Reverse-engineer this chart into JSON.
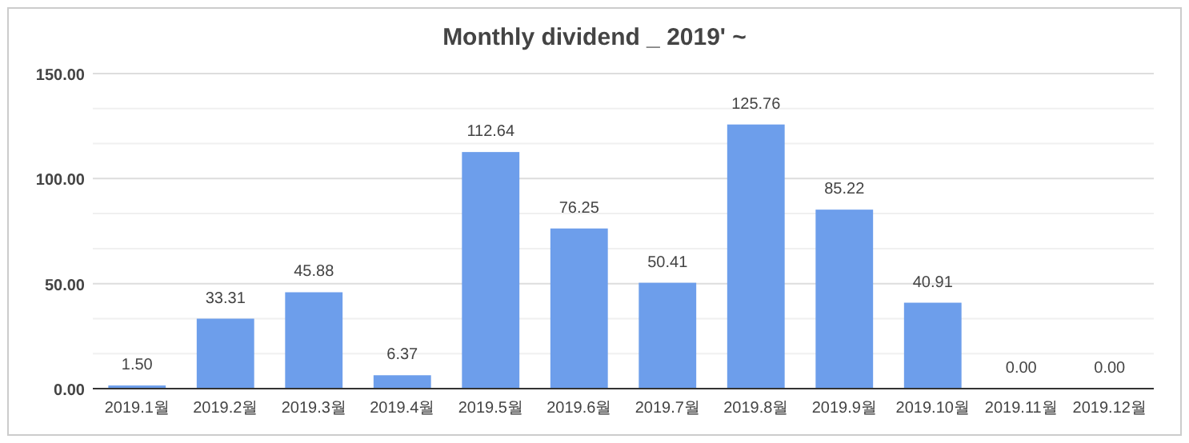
{
  "chart_data": {
    "type": "bar",
    "title": "Monthly dividend _ 2019' ~",
    "categories": [
      "2019.1월",
      "2019.2월",
      "2019.3월",
      "2019.4월",
      "2019.5월",
      "2019.6월",
      "2019.7월",
      "2019.8월",
      "2019.9월",
      "2019.10월",
      "2019.11월",
      "2019.12월"
    ],
    "values": [
      1.5,
      33.31,
      45.88,
      6.37,
      112.64,
      76.25,
      50.41,
      125.76,
      85.22,
      40.91,
      0,
      0
    ],
    "value_labels": [
      "1.50",
      "33.31",
      "45.88",
      "6.37",
      "112.64",
      "76.25",
      "50.41",
      "125.76",
      "85.22",
      "40.91",
      "0.00",
      "0.00"
    ],
    "color": "#6d9eeb",
    "ylim": [
      0,
      150
    ],
    "yticks": [
      {
        "value": 0,
        "label": "0.00"
      },
      {
        "value": 16.67,
        "label": null
      },
      {
        "value": 33.33,
        "label": null
      },
      {
        "value": 50,
        "label": "50.00"
      },
      {
        "value": 66.67,
        "label": null
      },
      {
        "value": 83.33,
        "label": null
      },
      {
        "value": 100,
        "label": "100.00"
      },
      {
        "value": 116.67,
        "label": null
      },
      {
        "value": 133.33,
        "label": null
      },
      {
        "value": 150,
        "label": "150.00"
      }
    ],
    "grid": "y"
  }
}
